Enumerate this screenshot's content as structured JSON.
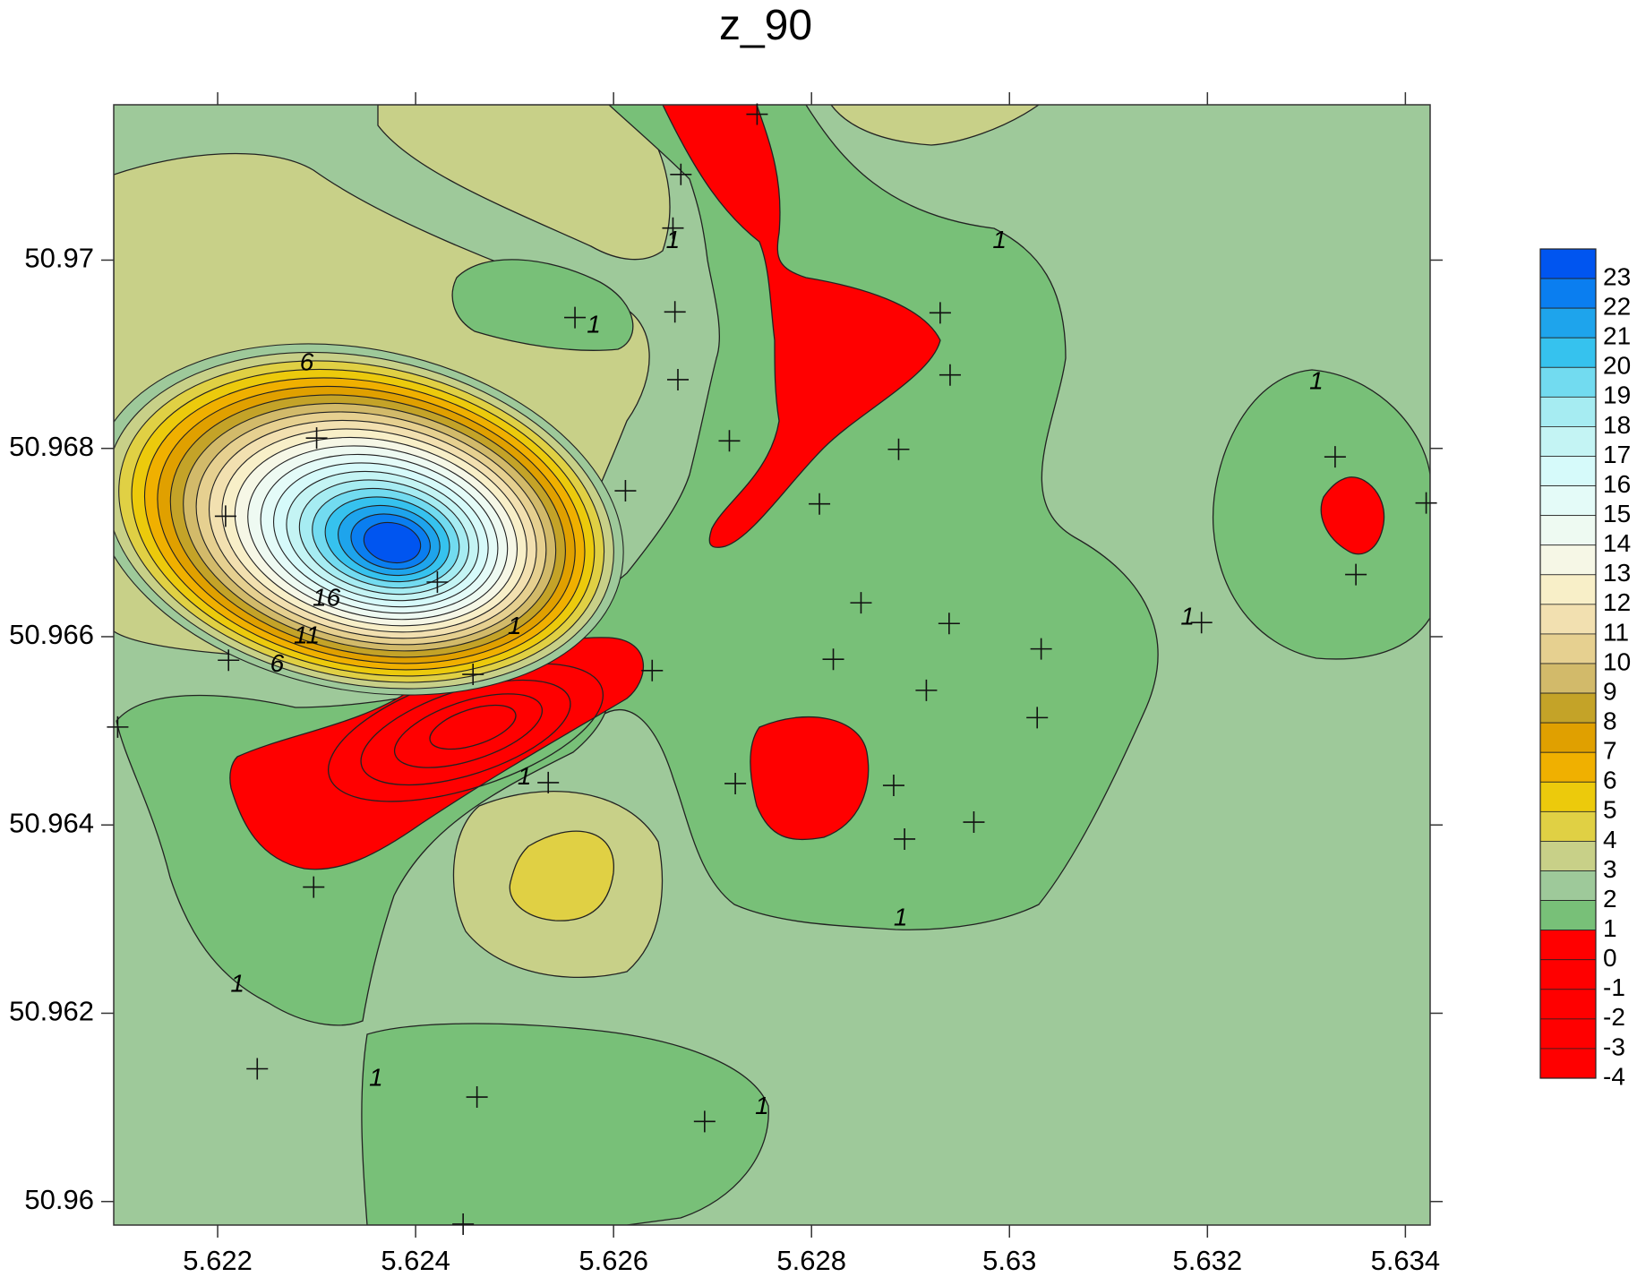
{
  "chart_data": {
    "type": "contour",
    "title": "z_90",
    "xlabel": "",
    "ylabel": "",
    "xlim": [
      5.62095,
      5.63425
    ],
    "ylim": [
      50.95975,
      50.97165
    ],
    "x_ticks": [
      5.622,
      5.624,
      5.626,
      5.628,
      5.63,
      5.632,
      5.634
    ],
    "x_tick_labels": [
      "5.622",
      "5.624",
      "5.626",
      "5.628",
      "5.63",
      "5.632",
      "5.634"
    ],
    "y_ticks": [
      50.96,
      50.962,
      50.964,
      50.966,
      50.968,
      50.97
    ],
    "y_tick_labels": [
      "50.96",
      "50.962",
      "50.964",
      "50.966",
      "50.968",
      "50.97"
    ],
    "legend": {
      "position": "right",
      "levels": [
        23,
        22,
        21,
        20,
        19,
        18,
        17,
        16,
        15,
        14,
        13,
        12,
        11,
        10,
        9,
        8,
        7,
        6,
        5,
        4,
        3,
        2,
        1,
        0,
        -1,
        -2,
        -3,
        -4
      ],
      "colors": [
        "#0055f0",
        "#0a7ef0",
        "#1ea4ec",
        "#36c2ee",
        "#72dbf0",
        "#a6ecf2",
        "#c4f4f4",
        "#d6fafa",
        "#e4fbf8",
        "#eefaf2",
        "#f6f7e6",
        "#f8efc8",
        "#f2e0b0",
        "#e6d090",
        "#d2ba6a",
        "#c4a328",
        "#e0a000",
        "#f0b000",
        "#ecca0c",
        "#e0d044",
        "#c8d088",
        "#9ec99a",
        "#78c078",
        "#ff0000",
        "#ff0000",
        "#ff0000",
        "#ff0000",
        "#ff0000"
      ]
    },
    "colors": {
      "base": "#9ec99a",
      "level_1": "#78c078",
      "negative": "#ff0000",
      "level_2": "#c8d088",
      "level_3": "#e0d044"
    },
    "contour_labels": [
      {
        "text": "1",
        "x": 5.6266,
        "y": 50.9702
      },
      {
        "text": "1",
        "x": 5.6258,
        "y": 50.9693
      },
      {
        "text": "1",
        "x": 5.6299,
        "y": 50.9702
      },
      {
        "text": "1",
        "x": 5.6331,
        "y": 50.9687
      },
      {
        "text": "1",
        "x": 5.625,
        "y": 50.9661
      },
      {
        "text": "1",
        "x": 5.6251,
        "y": 50.9645
      },
      {
        "text": "1",
        "x": 5.6318,
        "y": 50.9662
      },
      {
        "text": "1",
        "x": 5.6289,
        "y": 50.963
      },
      {
        "text": "1",
        "x": 5.6222,
        "y": 50.9623
      },
      {
        "text": "1",
        "x": 5.6236,
        "y": 50.9613
      },
      {
        "text": "1",
        "x": 5.6275,
        "y": 50.961
      },
      {
        "text": "6",
        "x": 5.6229,
        "y": 50.9689
      },
      {
        "text": "16",
        "x": 5.6231,
        "y": 50.9664
      },
      {
        "text": "11",
        "x": 5.6229,
        "y": 50.966
      },
      {
        "text": "6",
        "x": 5.6226,
        "y": 50.9657
      }
    ],
    "sample_points": [
      [
        5.62668,
        50.97091
      ],
      [
        5.6266,
        50.97034
      ],
      [
        5.62561,
        50.96939
      ],
      [
        5.62662,
        50.96945
      ],
      [
        5.62665,
        50.96873
      ],
      [
        5.62717,
        50.96808
      ],
      [
        5.6293,
        50.96944
      ],
      [
        5.6294,
        50.96878
      ],
      [
        5.62888,
        50.96799
      ],
      [
        5.62808,
        50.96741
      ],
      [
        5.623,
        50.96811
      ],
      [
        5.62612,
        50.96755
      ],
      [
        5.62208,
        50.96728
      ],
      [
        5.62422,
        50.96658
      ],
      [
        5.62211,
        50.96575
      ],
      [
        5.62458,
        50.9656
      ],
      [
        5.62639,
        50.96564
      ],
      [
        5.62534,
        50.96445
      ],
      [
        5.62723,
        50.96444
      ],
      [
        5.6285,
        50.96636
      ],
      [
        5.62939,
        50.96614
      ],
      [
        5.62822,
        50.96576
      ],
      [
        5.62916,
        50.96543
      ],
      [
        5.63032,
        50.96587
      ],
      [
        5.63028,
        50.96514
      ],
      [
        5.62883,
        50.96442
      ],
      [
        5.62894,
        50.96385
      ],
      [
        5.62964,
        50.96403
      ],
      [
        5.63194,
        50.96615
      ],
      [
        5.63329,
        50.96791
      ],
      [
        5.6335,
        50.96666
      ],
      [
        5.63421,
        50.96742
      ],
      [
        5.62297,
        50.96334
      ],
      [
        5.6224,
        50.96141
      ],
      [
        5.62462,
        50.96111
      ],
      [
        5.62692,
        50.96085
      ],
      [
        5.62448,
        50.95976
      ],
      [
        5.62745,
        50.97155
      ],
      [
        5.62099,
        50.96504
      ]
    ]
  }
}
